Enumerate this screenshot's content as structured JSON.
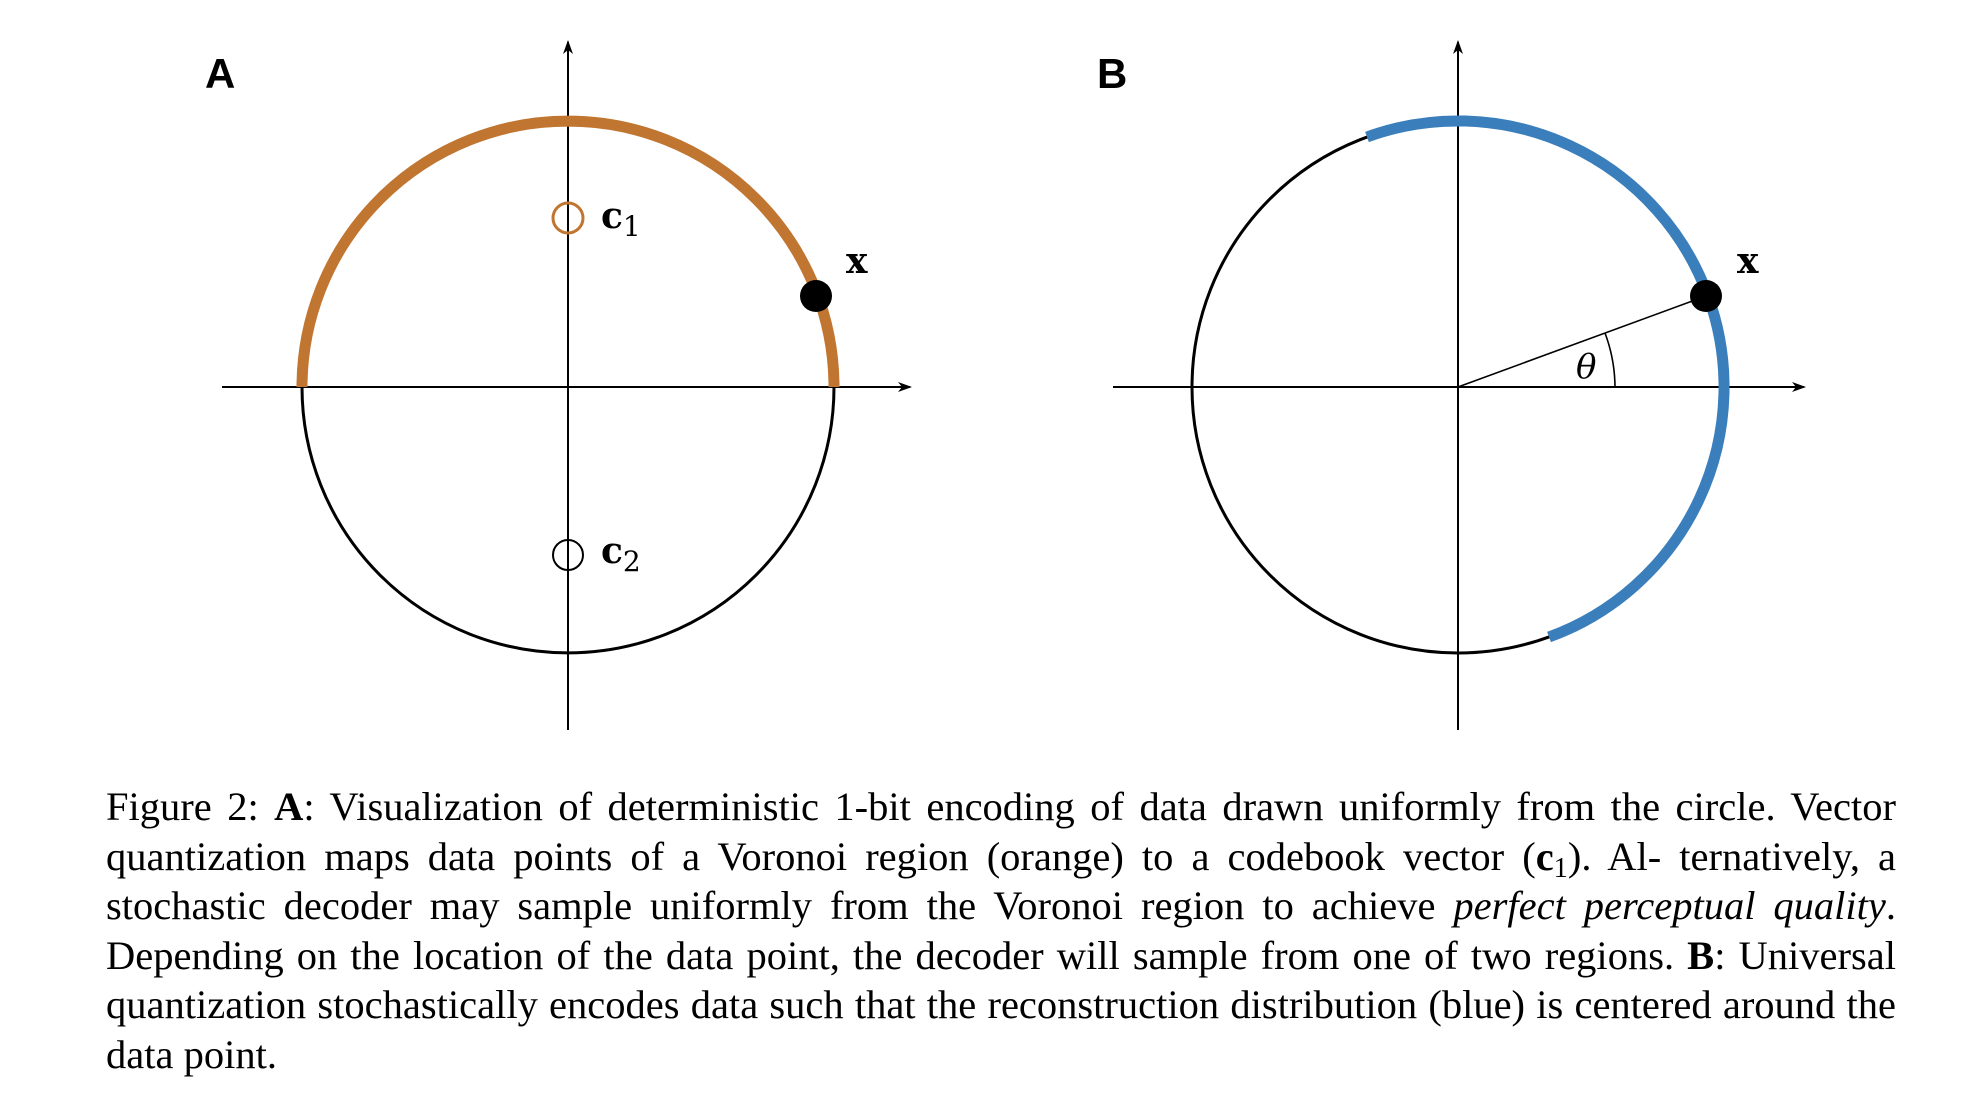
{
  "figure": {
    "panel_a": {
      "label": "A",
      "point_label": "x",
      "c1_base": "c",
      "c1_sub": "1",
      "c2_base": "c",
      "c2_sub": "2",
      "region_color": "#c07530"
    },
    "panel_b": {
      "label": "B",
      "point_label": "x",
      "angle_label": "θ",
      "region_color": "#3a7ebb"
    }
  },
  "caption": {
    "figure_label": "Figure 2:",
    "a_label": "A",
    "a_text": ": Visualization of deterministic 1-bit encoding of data drawn uniformly from the circle. Vector quantization maps data points of a Voronoi region (orange) to a codebook vector (",
    "c_base": "c",
    "c_sub": "1",
    "a_text_2": "). Al- ternatively, a stochastic decoder may sample uniformly from the Voronoi region to achieve",
    "perfect_quality": "perfect perceptual quality",
    "a_text_3": ". Depending on the location of the data point, the decoder will sample from one of two regions.",
    "b_label": "B",
    "b_text": ": Universal quantization stochastically encodes data such that the reconstruction distribution (blue) is centered around the data point."
  }
}
